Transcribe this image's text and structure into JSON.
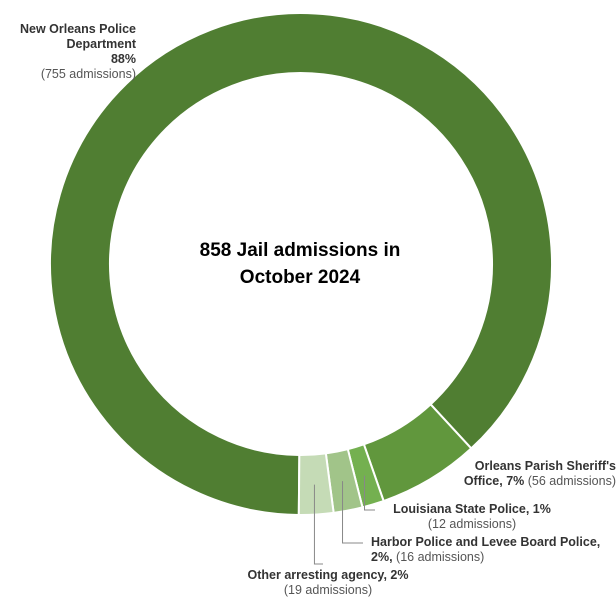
{
  "chart_data": {
    "type": "pie",
    "variant": "donut",
    "center_title": "858 Jail admissions in October 2024",
    "center_title_lines": [
      "858 Jail admissions in",
      "October 2024"
    ],
    "slices": [
      {
        "name": "New Orleans Police Department",
        "percent_label": "88%",
        "count_label": "(755 admissions)",
        "value": 755,
        "color": "#507e32"
      },
      {
        "name": "Orleans Parish Sheriff's",
        "name_line2": "Office",
        "percent_label": "7%",
        "count_label": "(56 admissions)",
        "value": 56,
        "color": "#61973d"
      },
      {
        "name": "Louisiana State Police",
        "percent_label": "1%",
        "count_label": "(12 admissions)",
        "value": 12,
        "color": "#74b050"
      },
      {
        "name": "Harbor Police and Levee Board Police",
        "percent_label": "2%,",
        "count_label": "(16 admissions)",
        "value": 16,
        "color": "#a1c489"
      },
      {
        "name": "Other arresting agency",
        "percent_label": "2%",
        "count_label": "(19 admissions)",
        "value": 19,
        "color": "#c5dbb6"
      }
    ]
  }
}
